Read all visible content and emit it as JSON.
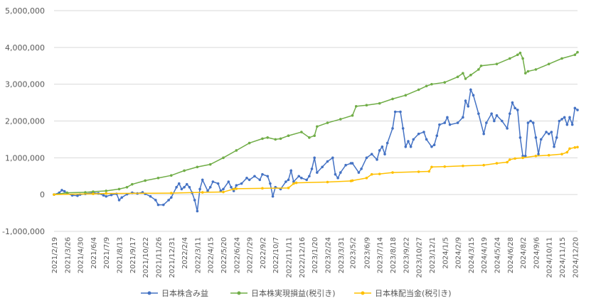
{
  "chart_data": {
    "type": "line",
    "title": "",
    "xlabel": "",
    "ylabel": "",
    "ylim": [
      -1000000,
      5000000
    ],
    "y_ticks": [
      {
        "value": 5000000,
        "label": "5,000,000",
        "color": "#595959"
      },
      {
        "value": 4000000,
        "label": "4,000,000",
        "color": "#595959"
      },
      {
        "value": 3000000,
        "label": "3,000,000",
        "color": "#595959"
      },
      {
        "value": 2000000,
        "label": "2,000,000",
        "color": "#595959"
      },
      {
        "value": 1000000,
        "label": "1,000,000",
        "color": "#595959"
      },
      {
        "value": 0,
        "label": "0",
        "color": "#595959"
      },
      {
        "value": -1000000,
        "label": "-1,000,000",
        "color": "#ff0000"
      }
    ],
    "x_start": "2021-02-19",
    "x_end": "2024-12-27",
    "x_tick_labels": [
      "2021/2/19",
      "2021/3/26",
      "2021/4/30",
      "2021/6/4",
      "2021/7/9",
      "2021/8/13",
      "2021/9/17",
      "2021/10/22",
      "2021/11/26",
      "2021/12/31",
      "2022/2/4",
      "2022/3/11",
      "2022/4/15",
      "2022/5/20",
      "2022/6/24",
      "2022/7/29",
      "2022/9/2",
      "2022/10/7",
      "2022/11/11",
      "2022/12/16",
      "2023/1/20",
      "2023/2/24",
      "2023/3/31",
      "2023/5/2",
      "2023/6/9",
      "2023/7/14",
      "2023/8/18",
      "2023/9/22",
      "2023/10/27",
      "2023/12/1",
      "2024/1/5",
      "2024/2/9",
      "2024/3/15",
      "2024/4/19",
      "2024/5/24",
      "2024/6/28",
      "2024/8/2",
      "2024/9/6",
      "2024/10/11",
      "2024/11/15",
      "2024/12/20"
    ],
    "grid": true,
    "legend_position": "bottom",
    "series": [
      {
        "name": "日本株含み益",
        "color": "#4472c4",
        "points": [
          [
            "2021-02-19",
            0
          ],
          [
            "2021-03-05",
            50000
          ],
          [
            "2021-03-12",
            120000
          ],
          [
            "2021-03-19",
            90000
          ],
          [
            "2021-03-26",
            30000
          ],
          [
            "2021-04-09",
            -20000
          ],
          [
            "2021-04-23",
            -30000
          ],
          [
            "2021-04-30",
            0
          ],
          [
            "2021-05-14",
            20000
          ],
          [
            "2021-06-04",
            50000
          ],
          [
            "2021-06-18",
            30000
          ],
          [
            "2021-07-02",
            -20000
          ],
          [
            "2021-07-09",
            -50000
          ],
          [
            "2021-07-23",
            -10000
          ],
          [
            "2021-08-06",
            20000
          ],
          [
            "2021-08-13",
            -150000
          ],
          [
            "2021-08-20",
            -80000
          ],
          [
            "2021-09-03",
            10000
          ],
          [
            "2021-09-17",
            50000
          ],
          [
            "2021-10-01",
            30000
          ],
          [
            "2021-10-15",
            60000
          ],
          [
            "2021-10-22",
            20000
          ],
          [
            "2021-11-05",
            -50000
          ],
          [
            "2021-11-19",
            -150000
          ],
          [
            "2021-11-26",
            -280000
          ],
          [
            "2021-12-10",
            -280000
          ],
          [
            "2021-12-24",
            -150000
          ],
          [
            "2021-12-31",
            -80000
          ],
          [
            "2022-01-14",
            200000
          ],
          [
            "2022-01-21",
            300000
          ],
          [
            "2022-01-28",
            150000
          ],
          [
            "2022-02-04",
            200000
          ],
          [
            "2022-02-11",
            280000
          ],
          [
            "2022-02-18",
            200000
          ],
          [
            "2022-02-25",
            50000
          ],
          [
            "2022-03-04",
            -150000
          ],
          [
            "2022-03-11",
            -450000
          ],
          [
            "2022-03-18",
            150000
          ],
          [
            "2022-03-25",
            400000
          ],
          [
            "2022-04-08",
            100000
          ],
          [
            "2022-04-15",
            200000
          ],
          [
            "2022-04-22",
            350000
          ],
          [
            "2022-05-06",
            300000
          ],
          [
            "2022-05-13",
            100000
          ],
          [
            "2022-05-20",
            150000
          ],
          [
            "2022-06-03",
            350000
          ],
          [
            "2022-06-10",
            200000
          ],
          [
            "2022-06-17",
            100000
          ],
          [
            "2022-06-24",
            250000
          ],
          [
            "2022-07-08",
            300000
          ],
          [
            "2022-07-22",
            450000
          ],
          [
            "2022-07-29",
            400000
          ],
          [
            "2022-08-12",
            500000
          ],
          [
            "2022-08-26",
            400000
          ],
          [
            "2022-09-02",
            550000
          ],
          [
            "2022-09-16",
            500000
          ],
          [
            "2022-09-23",
            300000
          ],
          [
            "2022-09-30",
            -50000
          ],
          [
            "2022-10-07",
            200000
          ],
          [
            "2022-10-21",
            150000
          ],
          [
            "2022-11-04",
            350000
          ],
          [
            "2022-11-11",
            400000
          ],
          [
            "2022-11-18",
            650000
          ],
          [
            "2022-11-25",
            350000
          ],
          [
            "2022-12-09",
            500000
          ],
          [
            "2022-12-16",
            450000
          ],
          [
            "2022-12-30",
            400000
          ],
          [
            "2023-01-06",
            500000
          ],
          [
            "2023-01-13",
            700000
          ],
          [
            "2023-01-20",
            1000000
          ],
          [
            "2023-01-27",
            600000
          ],
          [
            "2023-02-10",
            750000
          ],
          [
            "2023-02-24",
            900000
          ],
          [
            "2023-03-10",
            1000000
          ],
          [
            "2023-03-17",
            550000
          ],
          [
            "2023-03-24",
            450000
          ],
          [
            "2023-03-31",
            600000
          ],
          [
            "2023-04-14",
            800000
          ],
          [
            "2023-04-28",
            850000
          ],
          [
            "2023-05-02",
            850000
          ],
          [
            "2023-05-19",
            600000
          ],
          [
            "2023-05-26",
            700000
          ],
          [
            "2023-06-09",
            1000000
          ],
          [
            "2023-06-23",
            1100000
          ],
          [
            "2023-07-07",
            950000
          ],
          [
            "2023-07-14",
            1200000
          ],
          [
            "2023-07-21",
            1300000
          ],
          [
            "2023-07-28",
            1100000
          ],
          [
            "2023-08-04",
            1400000
          ],
          [
            "2023-08-18",
            1800000
          ],
          [
            "2023-08-25",
            2250000
          ],
          [
            "2023-09-08",
            2250000
          ],
          [
            "2023-09-15",
            1800000
          ],
          [
            "2023-09-22",
            1300000
          ],
          [
            "2023-09-29",
            1450000
          ],
          [
            "2023-10-06",
            1300000
          ],
          [
            "2023-10-13",
            1500000
          ],
          [
            "2023-10-27",
            1650000
          ],
          [
            "2023-11-10",
            1700000
          ],
          [
            "2023-11-17",
            1500000
          ],
          [
            "2023-12-01",
            1300000
          ],
          [
            "2023-12-08",
            1350000
          ],
          [
            "2023-12-15",
            1600000
          ],
          [
            "2023-12-22",
            1900000
          ],
          [
            "2024-01-05",
            1950000
          ],
          [
            "2024-01-12",
            2100000
          ],
          [
            "2024-01-19",
            1900000
          ],
          [
            "2024-02-09",
            1950000
          ],
          [
            "2024-02-23",
            2100000
          ],
          [
            "2024-03-01",
            2550000
          ],
          [
            "2024-03-08",
            2400000
          ],
          [
            "2024-03-15",
            2850000
          ],
          [
            "2024-03-22",
            2700000
          ],
          [
            "2024-04-05",
            2200000
          ],
          [
            "2024-04-19",
            1650000
          ],
          [
            "2024-04-26",
            1950000
          ],
          [
            "2024-05-10",
            2200000
          ],
          [
            "2024-05-17",
            2000000
          ],
          [
            "2024-05-24",
            2150000
          ],
          [
            "2024-06-07",
            2000000
          ],
          [
            "2024-06-21",
            1800000
          ],
          [
            "2024-06-28",
            2200000
          ],
          [
            "2024-07-05",
            2500000
          ],
          [
            "2024-07-12",
            2350000
          ],
          [
            "2024-07-19",
            2300000
          ],
          [
            "2024-07-26",
            1550000
          ],
          [
            "2024-08-02",
            1050000
          ],
          [
            "2024-08-09",
            1050000
          ],
          [
            "2024-08-16",
            1950000
          ],
          [
            "2024-08-23",
            2000000
          ],
          [
            "2024-08-30",
            1950000
          ],
          [
            "2024-09-06",
            1550000
          ],
          [
            "2024-09-13",
            1100000
          ],
          [
            "2024-09-20",
            1500000
          ],
          [
            "2024-10-04",
            1700000
          ],
          [
            "2024-10-11",
            1650000
          ],
          [
            "2024-10-18",
            1700000
          ],
          [
            "2024-10-25",
            1300000
          ],
          [
            "2024-11-01",
            1550000
          ],
          [
            "2024-11-08",
            2000000
          ],
          [
            "2024-11-15",
            2050000
          ],
          [
            "2024-11-22",
            2100000
          ],
          [
            "2024-11-29",
            1900000
          ],
          [
            "2024-12-06",
            2100000
          ],
          [
            "2024-12-13",
            1900000
          ],
          [
            "2024-12-20",
            2350000
          ],
          [
            "2024-12-27",
            2300000
          ]
        ]
      },
      {
        "name": "日本株実現損益(税引き)",
        "color": "#70ad47",
        "points": [
          [
            "2021-02-19",
            0
          ],
          [
            "2021-03-26",
            50000
          ],
          [
            "2021-05-14",
            60000
          ],
          [
            "2021-06-04",
            80000
          ],
          [
            "2021-07-09",
            100000
          ],
          [
            "2021-08-13",
            150000
          ],
          [
            "2021-09-03",
            200000
          ],
          [
            "2021-09-17",
            280000
          ],
          [
            "2021-10-22",
            380000
          ],
          [
            "2021-11-26",
            450000
          ],
          [
            "2021-12-31",
            520000
          ],
          [
            "2022-02-04",
            650000
          ],
          [
            "2022-03-11",
            750000
          ],
          [
            "2022-04-15",
            820000
          ],
          [
            "2022-05-20",
            1000000
          ],
          [
            "2022-06-24",
            1200000
          ],
          [
            "2022-07-29",
            1400000
          ],
          [
            "2022-09-02",
            1520000
          ],
          [
            "2022-09-16",
            1550000
          ],
          [
            "2022-10-07",
            1500000
          ],
          [
            "2022-10-21",
            1520000
          ],
          [
            "2022-11-11",
            1600000
          ],
          [
            "2022-12-16",
            1700000
          ],
          [
            "2023-01-06",
            1550000
          ],
          [
            "2023-01-20",
            1600000
          ],
          [
            "2023-01-27",
            1850000
          ],
          [
            "2023-02-24",
            1950000
          ],
          [
            "2023-03-31",
            2050000
          ],
          [
            "2023-05-02",
            2150000
          ],
          [
            "2023-05-12",
            2400000
          ],
          [
            "2023-06-09",
            2430000
          ],
          [
            "2023-07-14",
            2480000
          ],
          [
            "2023-08-18",
            2600000
          ],
          [
            "2023-09-22",
            2700000
          ],
          [
            "2023-10-27",
            2850000
          ],
          [
            "2023-11-17",
            2950000
          ],
          [
            "2023-12-01",
            3000000
          ],
          [
            "2024-01-05",
            3050000
          ],
          [
            "2024-02-09",
            3200000
          ],
          [
            "2024-02-23",
            3300000
          ],
          [
            "2024-03-01",
            3150000
          ],
          [
            "2024-03-15",
            3250000
          ],
          [
            "2024-04-05",
            3400000
          ],
          [
            "2024-04-12",
            3500000
          ],
          [
            "2024-05-24",
            3550000
          ],
          [
            "2024-06-28",
            3700000
          ],
          [
            "2024-07-19",
            3800000
          ],
          [
            "2024-07-26",
            3850000
          ],
          [
            "2024-08-02",
            3700000
          ],
          [
            "2024-08-09",
            3300000
          ],
          [
            "2024-08-16",
            3350000
          ],
          [
            "2024-09-06",
            3400000
          ],
          [
            "2024-10-11",
            3550000
          ],
          [
            "2024-11-15",
            3700000
          ],
          [
            "2024-12-20",
            3800000
          ],
          [
            "2024-12-27",
            3870000
          ]
        ]
      },
      {
        "name": "日本株配当金(税引き)",
        "color": "#ffc000",
        "points": [
          [
            "2021-02-19",
            0
          ],
          [
            "2021-06-04",
            20000
          ],
          [
            "2021-07-09",
            30000
          ],
          [
            "2021-12-31",
            40000
          ],
          [
            "2022-03-25",
            60000
          ],
          [
            "2022-05-20",
            70000
          ],
          [
            "2022-06-17",
            150000
          ],
          [
            "2022-06-24",
            160000
          ],
          [
            "2022-09-02",
            170000
          ],
          [
            "2022-11-11",
            180000
          ],
          [
            "2022-11-25",
            300000
          ],
          [
            "2022-12-02",
            320000
          ],
          [
            "2023-02-24",
            340000
          ],
          [
            "2023-04-28",
            370000
          ],
          [
            "2023-05-02",
            380000
          ],
          [
            "2023-06-09",
            450000
          ],
          [
            "2023-06-23",
            550000
          ],
          [
            "2023-07-14",
            560000
          ],
          [
            "2023-08-18",
            600000
          ],
          [
            "2023-10-27",
            620000
          ],
          [
            "2023-11-24",
            630000
          ],
          [
            "2023-12-01",
            750000
          ],
          [
            "2024-01-05",
            760000
          ],
          [
            "2024-02-23",
            780000
          ],
          [
            "2024-04-19",
            800000
          ],
          [
            "2024-05-24",
            850000
          ],
          [
            "2024-06-21",
            880000
          ],
          [
            "2024-06-28",
            950000
          ],
          [
            "2024-07-12",
            980000
          ],
          [
            "2024-08-02",
            1000000
          ],
          [
            "2024-09-06",
            1050000
          ],
          [
            "2024-10-11",
            1070000
          ],
          [
            "2024-11-15",
            1100000
          ],
          [
            "2024-11-29",
            1150000
          ],
          [
            "2024-12-06",
            1250000
          ],
          [
            "2024-12-20",
            1280000
          ],
          [
            "2024-12-27",
            1290000
          ]
        ]
      }
    ]
  }
}
